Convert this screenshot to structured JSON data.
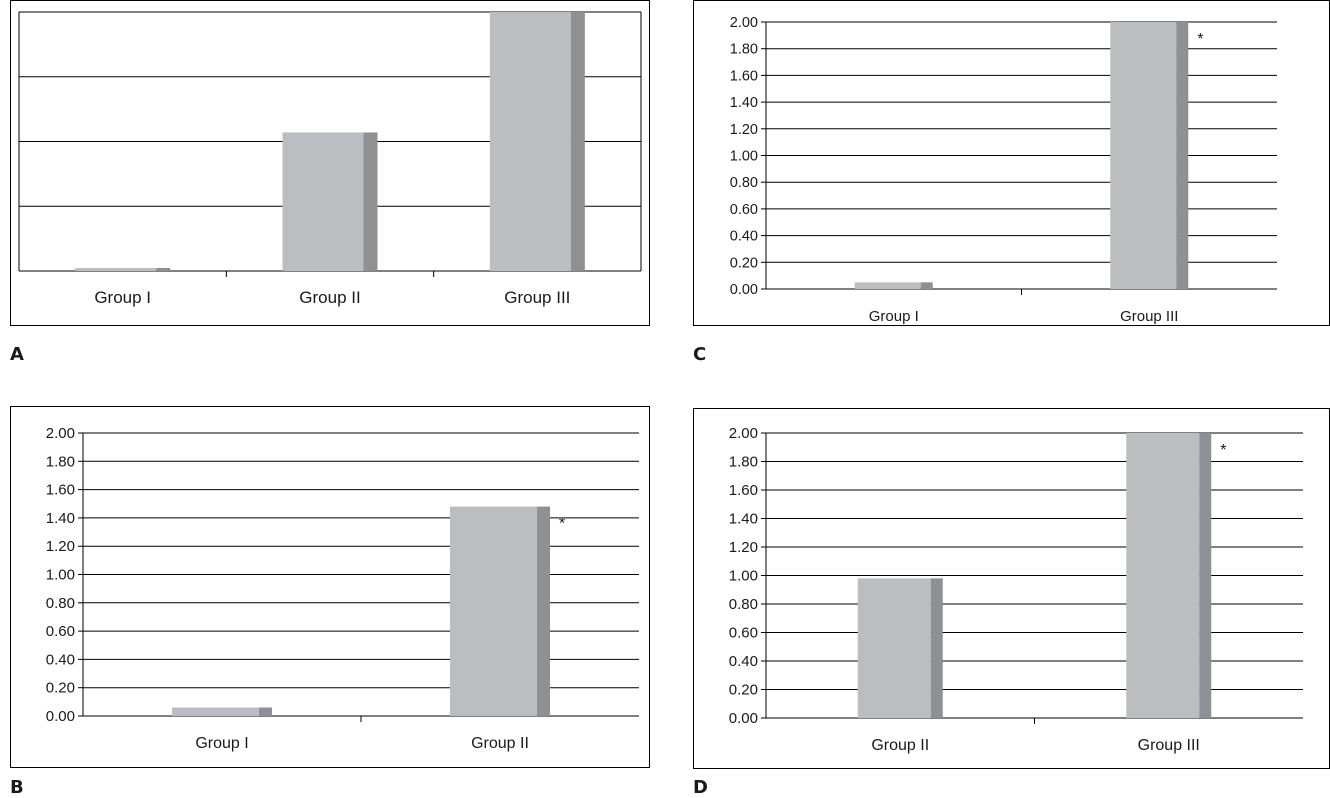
{
  "panels": [
    {
      "letter": "A"
    },
    {
      "letter": "B"
    },
    {
      "letter": "C"
    },
    {
      "letter": "D"
    }
  ],
  "colors": {
    "bar_front": "#bcbdc1",
    "bar_side": "#8f9094",
    "line": "#000000",
    "text": "#1a1a1a"
  },
  "chart_data": [
    {
      "panel": "A",
      "type": "bar",
      "categories": [
        "Group I",
        "Group II",
        "Group III"
      ],
      "values": [
        0.03,
        2.14,
        4.0
      ],
      "ylim": [
        0,
        4
      ],
      "yticks": [
        0,
        1,
        2,
        3,
        4
      ],
      "show_tick_labels": false,
      "grid": true,
      "significance": [
        "",
        "",
        ""
      ]
    },
    {
      "panel": "B",
      "type": "bar",
      "categories": [
        "Group I",
        "Group II"
      ],
      "values": [
        0.06,
        1.48
      ],
      "ylim": [
        0,
        2
      ],
      "yticks": [
        "0.00",
        "0.20",
        "0.40",
        "0.60",
        "0.80",
        "1.00",
        "1.20",
        "1.40",
        "1.60",
        "1.80",
        "2.00"
      ],
      "show_tick_labels": true,
      "grid": true,
      "significance": [
        "",
        "*"
      ]
    },
    {
      "panel": "C",
      "type": "bar",
      "categories": [
        "Group I",
        "Group III"
      ],
      "values": [
        0.05,
        2.0
      ],
      "ylim": [
        0,
        2
      ],
      "yticks": [
        "0.00",
        "0.20",
        "0.40",
        "0.60",
        "0.80",
        "1.00",
        "1.20",
        "1.40",
        "1.60",
        "1.80",
        "2.00"
      ],
      "show_tick_labels": true,
      "grid": true,
      "significance": [
        "",
        "*"
      ]
    },
    {
      "panel": "D",
      "type": "bar",
      "categories": [
        "Group II",
        "Group III"
      ],
      "values": [
        0.98,
        2.0
      ],
      "ylim": [
        0,
        2
      ],
      "yticks": [
        "0.00",
        "0.20",
        "0.40",
        "0.60",
        "0.80",
        "1.00",
        "1.20",
        "1.40",
        "1.60",
        "1.80",
        "2.00"
      ],
      "show_tick_labels": true,
      "grid": true,
      "significance": [
        "",
        "*"
      ]
    }
  ]
}
